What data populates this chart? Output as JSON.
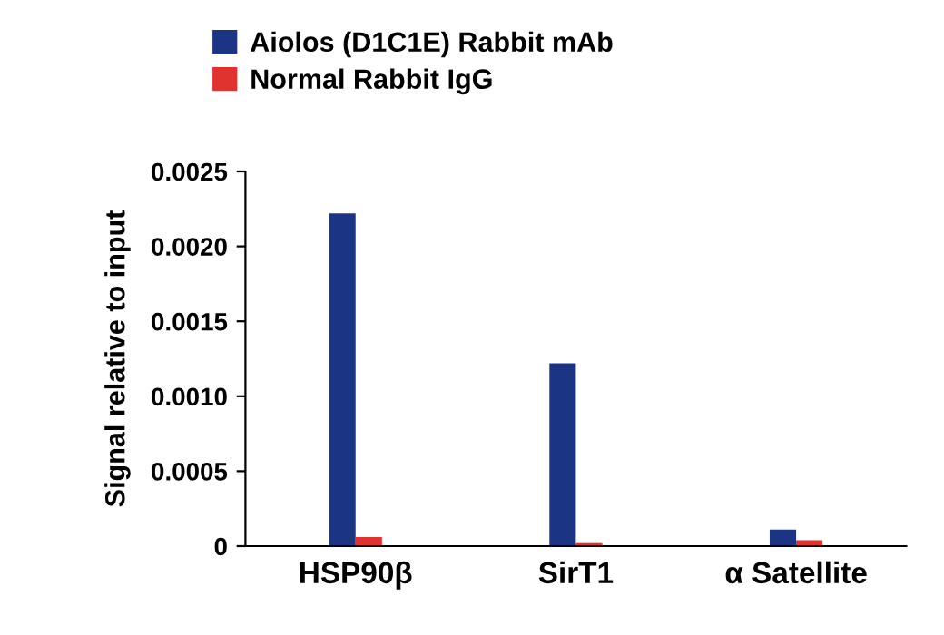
{
  "chart_data": {
    "type": "bar",
    "ylabel": "Signal relative to input",
    "categories": [
      "HSP90β",
      "SirT1",
      "α Satellite"
    ],
    "series": [
      {
        "name": "Aiolos (D1C1E) Rabbit mAb",
        "color": "#1b3484",
        "values": [
          0.00222,
          0.00122,
          0.00011
        ]
      },
      {
        "name": "Normal Rabbit IgG",
        "color": "#e0322e",
        "values": [
          6e-05,
          2e-05,
          4e-05
        ]
      }
    ],
    "ylim": [
      0,
      0.0025
    ],
    "yticks": [
      {
        "value": 0,
        "label": "0"
      },
      {
        "value": 0.0005,
        "label": "0.0005"
      },
      {
        "value": 0.001,
        "label": "0.0010"
      },
      {
        "value": 0.0015,
        "label": "0.0015"
      },
      {
        "value": 0.002,
        "label": "0.0020"
      },
      {
        "value": 0.0025,
        "label": "0.0025"
      }
    ],
    "grid": false,
    "legend": "top left"
  }
}
